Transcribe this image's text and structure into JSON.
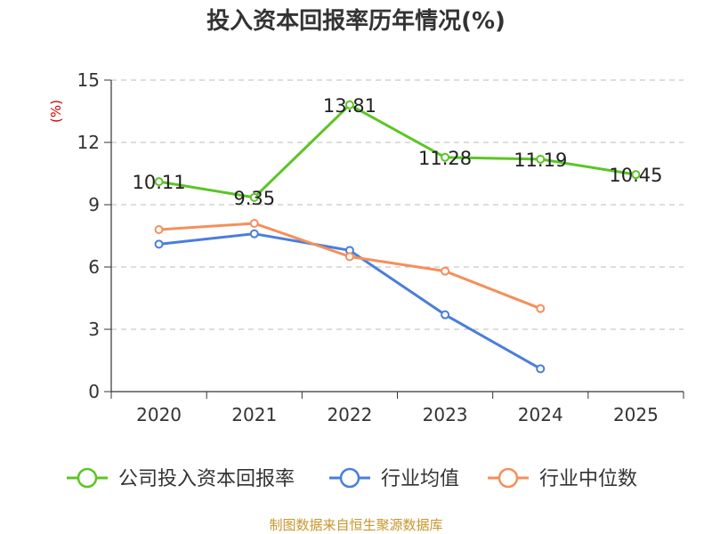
{
  "chart_data": {
    "type": "line",
    "title": "投入资本回报率历年情况(%)",
    "unit_label": "(%)",
    "categories": [
      "2020",
      "2021",
      "2022",
      "2023",
      "2024",
      "2025"
    ],
    "ylim": [
      0,
      15
    ],
    "yticks": [
      "0",
      "3",
      "6",
      "9",
      "12",
      "15"
    ],
    "grid": true,
    "legend_position": "bottom",
    "series": [
      {
        "name": "公司投入资本回报率",
        "color": "#5cc525",
        "values": [
          10.11,
          9.35,
          13.81,
          11.28,
          11.19,
          10.45
        ],
        "labels": [
          "10.11",
          "9.35",
          "13.81",
          "11.28",
          "11.19",
          "10.45"
        ],
        "show_labels": true
      },
      {
        "name": "行业均值",
        "color": "#4a7edc",
        "values": [
          7.1,
          7.6,
          6.8,
          3.7,
          1.1,
          null
        ],
        "show_labels": false
      },
      {
        "name": "行业中位数",
        "color": "#f58f5a",
        "values": [
          7.8,
          8.1,
          6.5,
          5.8,
          4.0,
          null
        ],
        "show_labels": false
      }
    ],
    "source": "制图数据来自恒生聚源数据库",
    "unit_color": "#cc0000",
    "source_color": "#c8962e"
  }
}
